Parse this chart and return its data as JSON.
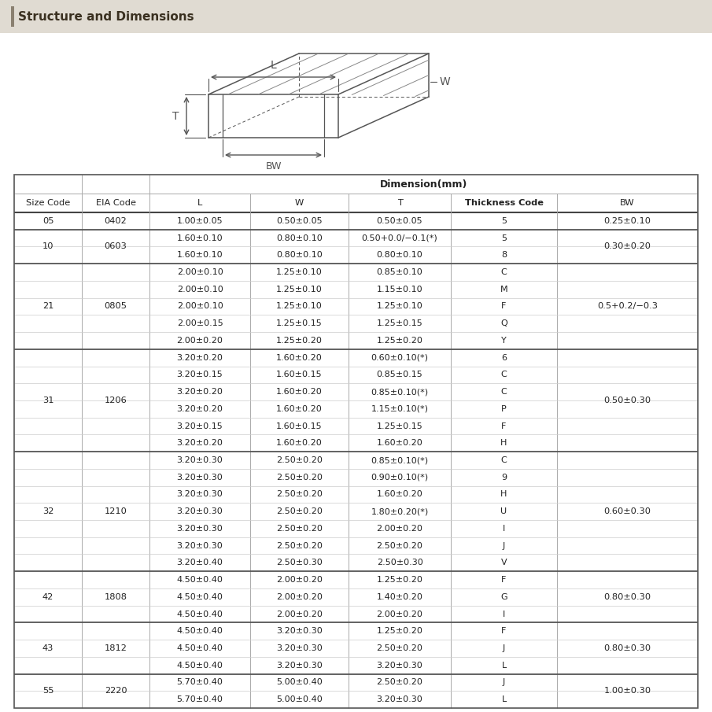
{
  "title": "Structure and Dimensions",
  "title_bar_color": "#e0dbd2",
  "title_bar_accent": "#8a8070",
  "header_row2": [
    "Size Code",
    "EIA Code",
    "L",
    "W",
    "T",
    "Thickness Code",
    "BW"
  ],
  "rows": [
    [
      "05",
      "0402",
      "1.00±0.05",
      "0.50±0.05",
      "0.50±0.05",
      "5",
      "0.25±0.10"
    ],
    [
      "10",
      "0603",
      "1.60±0.10",
      "0.80±0.10",
      "0.50+0.0/−0.1(*)",
      "5",
      "0.30±0.20"
    ],
    [
      "",
      "",
      "1.60±0.10",
      "0.80±0.10",
      "0.80±0.10",
      "8",
      ""
    ],
    [
      "21",
      "0805",
      "2.00±0.10",
      "1.25±0.10",
      "0.85±0.10",
      "C",
      "0.5+0.2/−0.3"
    ],
    [
      "",
      "",
      "2.00±0.10",
      "1.25±0.10",
      "1.15±0.10",
      "M",
      ""
    ],
    [
      "",
      "",
      "2.00±0.10",
      "1.25±0.10",
      "1.25±0.10",
      "F",
      ""
    ],
    [
      "",
      "",
      "2.00±0.15",
      "1.25±0.15",
      "1.25±0.15",
      "Q",
      ""
    ],
    [
      "",
      "",
      "2.00±0.20",
      "1.25±0.20",
      "1.25±0.20",
      "Y",
      ""
    ],
    [
      "31",
      "1206",
      "3.20±0.20",
      "1.60±0.20",
      "0.60±0.10(*)",
      "6",
      "0.50±0.30"
    ],
    [
      "",
      "",
      "3.20±0.15",
      "1.60±0.15",
      "0.85±0.15",
      "C",
      ""
    ],
    [
      "",
      "",
      "3.20±0.20",
      "1.60±0.20",
      "0.85±0.10(*)",
      "C",
      ""
    ],
    [
      "",
      "",
      "3.20±0.20",
      "1.60±0.20",
      "1.15±0.10(*)",
      "P",
      ""
    ],
    [
      "",
      "",
      "3.20±0.15",
      "1.60±0.15",
      "1.25±0.15",
      "F",
      ""
    ],
    [
      "",
      "",
      "3.20±0.20",
      "1.60±0.20",
      "1.60±0.20",
      "H",
      ""
    ],
    [
      "32",
      "1210",
      "3.20±0.30",
      "2.50±0.20",
      "0.85±0.10(*)",
      "C",
      "0.60±0.30"
    ],
    [
      "",
      "",
      "3.20±0.30",
      "2.50±0.20",
      "0.90±0.10(*)",
      "9",
      ""
    ],
    [
      "",
      "",
      "3.20±0.30",
      "2.50±0.20",
      "1.60±0.20",
      "H",
      ""
    ],
    [
      "",
      "",
      "3.20±0.30",
      "2.50±0.20",
      "1.80±0.20(*)",
      "U",
      ""
    ],
    [
      "",
      "",
      "3.20±0.30",
      "2.50±0.20",
      "2.00±0.20",
      "I",
      ""
    ],
    [
      "",
      "",
      "3.20±0.30",
      "2.50±0.20",
      "2.50±0.20",
      "J",
      ""
    ],
    [
      "",
      "",
      "3.20±0.40",
      "2.50±0.30",
      "2.50±0.30",
      "V",
      ""
    ],
    [
      "42",
      "1808",
      "4.50±0.40",
      "2.00±0.20",
      "1.25±0.20",
      "F",
      "0.80±0.30"
    ],
    [
      "",
      "",
      "4.50±0.40",
      "2.00±0.20",
      "1.40±0.20",
      "G",
      ""
    ],
    [
      "",
      "",
      "4.50±0.40",
      "2.00±0.20",
      "2.00±0.20",
      "I",
      ""
    ],
    [
      "43",
      "1812",
      "4.50±0.40",
      "3.20±0.30",
      "1.25±0.20",
      "F",
      "0.80±0.30"
    ],
    [
      "",
      "",
      "4.50±0.40",
      "3.20±0.30",
      "2.50±0.20",
      "J",
      ""
    ],
    [
      "",
      "",
      "4.50±0.40",
      "3.20±0.30",
      "3.20±0.30",
      "L",
      ""
    ],
    [
      "55",
      "2220",
      "5.70±0.40",
      "5.00±0.40",
      "2.50±0.20",
      "J",
      "1.00±0.30"
    ],
    [
      "",
      "",
      "5.70±0.40",
      "5.00±0.40",
      "3.20±0.30",
      "L",
      ""
    ]
  ],
  "group_info": [
    {
      "size": "05",
      "eia": "0402",
      "bw": "0.25±0.10",
      "rows": [
        0,
        0
      ]
    },
    {
      "size": "10",
      "eia": "0603",
      "bw": "0.30±0.20",
      "rows": [
        1,
        2
      ]
    },
    {
      "size": "21",
      "eia": "0805",
      "bw": "0.5+0.2/−0.3",
      "rows": [
        3,
        7
      ]
    },
    {
      "size": "31",
      "eia": "1206",
      "bw": "0.50±0.30",
      "rows": [
        8,
        13
      ]
    },
    {
      "size": "32",
      "eia": "1210",
      "bw": "0.60±0.30",
      "rows": [
        14,
        20
      ]
    },
    {
      "size": "42",
      "eia": "1808",
      "bw": "0.80±0.30",
      "rows": [
        21,
        23
      ]
    },
    {
      "size": "43",
      "eia": "1812",
      "bw": "0.80±0.30",
      "rows": [
        24,
        26
      ]
    },
    {
      "size": "55",
      "eia": "2220",
      "bw": "1.00±0.30",
      "rows": [
        27,
        28
      ]
    }
  ],
  "bg_color": "#ffffff",
  "line_thin": "#cccccc",
  "line_thick": "#555555",
  "text_color": "#222222",
  "diagram_line_color": "#555555"
}
